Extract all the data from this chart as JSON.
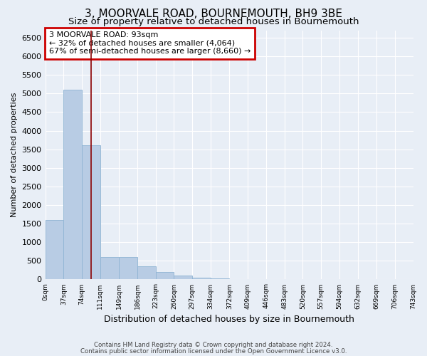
{
  "title": "3, MOORVALE ROAD, BOURNEMOUTH, BH9 3BE",
  "subtitle": "Size of property relative to detached houses in Bournemouth",
  "xlabel": "Distribution of detached houses by size in Bournemouth",
  "ylabel": "Number of detached properties",
  "footer_line1": "Contains HM Land Registry data © Crown copyright and database right 2024.",
  "footer_line2": "Contains public sector information licensed under the Open Government Licence v3.0.",
  "annotation_line1": "3 MOORVALE ROAD: 93sqm",
  "annotation_line2": "← 32% of detached houses are smaller (4,064)",
  "annotation_line3": "67% of semi-detached houses are larger (8,660) →",
  "bar_color": "#b8cce4",
  "bar_edge_color": "#8fb4d4",
  "vline_color": "#8b0000",
  "vline_x": 93,
  "bin_edges": [
    0,
    37,
    74,
    111,
    149,
    186,
    223,
    260,
    297,
    334,
    372,
    409,
    446,
    483,
    520,
    557,
    594,
    632,
    669,
    706,
    743
  ],
  "bar_heights": [
    1600,
    5100,
    3600,
    600,
    600,
    350,
    200,
    100,
    50,
    20,
    0,
    0,
    0,
    0,
    0,
    0,
    0,
    0,
    0,
    0
  ],
  "ylim": [
    0,
    6700
  ],
  "yticks": [
    0,
    500,
    1000,
    1500,
    2000,
    2500,
    3000,
    3500,
    4000,
    4500,
    5000,
    5500,
    6000,
    6500
  ],
  "bg_color": "#e8eef6",
  "plot_bg_color": "#e8eef6",
  "grid_color": "#ffffff",
  "title_fontsize": 11,
  "subtitle_fontsize": 9.5,
  "xlabel_fontsize": 9,
  "ylabel_fontsize": 8,
  "annotation_box_edge_color": "#cc0000",
  "annotation_fontsize": 8
}
